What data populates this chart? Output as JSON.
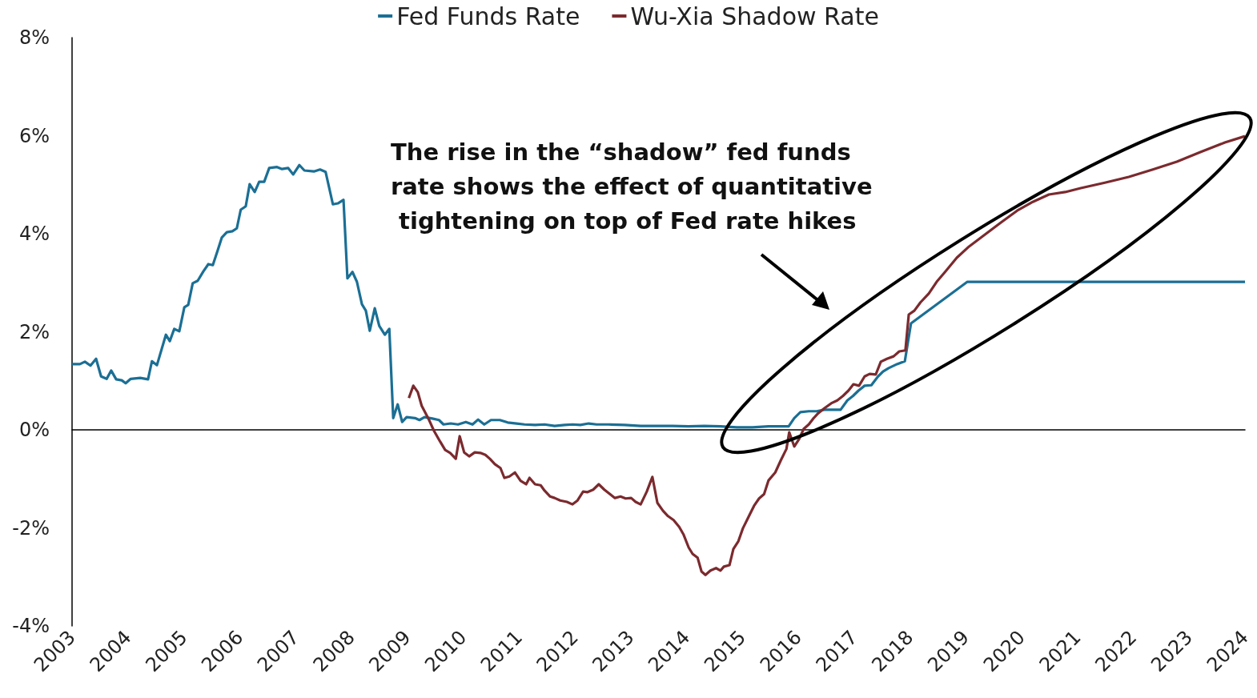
{
  "chart_data": {
    "type": "line",
    "legend": "top",
    "marker": "none",
    "xlim": [
      2003,
      2024
    ],
    "xticks": [
      2003,
      2004,
      2005,
      2006,
      2007,
      2008,
      2009,
      2010,
      2011,
      2012,
      2013,
      2014,
      2015,
      2016,
      2017,
      2018,
      2019,
      2020,
      2021,
      2022,
      2023,
      2024
    ],
    "ylim": [
      -4,
      8
    ],
    "yticks": [
      {
        "value": -4,
        "label": "-4%"
      },
      {
        "value": -2,
        "label": "-2%"
      },
      {
        "value": 0,
        "label": "0%"
      },
      {
        "value": 2,
        "label": "2%"
      },
      {
        "value": 4,
        "label": "4%"
      },
      {
        "value": 6,
        "label": "6%"
      },
      {
        "value": 8,
        "label": "8%"
      }
    ],
    "annotations": [
      "The rise in the “shadow” fed funds rate shows the effect of quantitative tightening on top of Fed rate hikes"
    ],
    "series": [
      {
        "name": "Fed Funds Rate",
        "color": "#1b6f94",
        "x": [
          2003.0,
          2003.14,
          2003.23,
          2003.33,
          2003.43,
          2003.52,
          2003.62,
          2003.7,
          2003.79,
          2003.89,
          2003.96,
          2004.05,
          2004.22,
          2004.36,
          2004.43,
          2004.52,
          2004.68,
          2004.75,
          2004.83,
          2004.92,
          2005.01,
          2005.08,
          2005.16,
          2005.25,
          2005.35,
          2005.44,
          2005.52,
          2005.61,
          2005.68,
          2005.77,
          2005.87,
          2005.95,
          2006.02,
          2006.11,
          2006.18,
          2006.27,
          2006.35,
          2006.44,
          2006.53,
          2006.67,
          2006.76,
          2006.87,
          2006.96,
          2007.07,
          2007.16,
          2007.33,
          2007.44,
          2007.54,
          2007.67,
          2007.76,
          2007.86,
          2007.93,
          2008.02,
          2008.1,
          2008.19,
          2008.26,
          2008.33,
          2008.42,
          2008.5,
          2008.6,
          2008.68,
          2008.75,
          2008.83,
          2008.91,
          2008.99,
          2009.14,
          2009.22,
          2009.31,
          2009.45,
          2009.57,
          2009.65,
          2009.78,
          2009.91,
          2010.05,
          2010.17,
          2010.27,
          2010.38,
          2010.5,
          2010.66,
          2010.8,
          2010.96,
          2011.1,
          2011.29,
          2011.46,
          2011.64,
          2011.82,
          2011.96,
          2012.1,
          2012.25,
          2012.39,
          2012.6,
          2012.89,
          2013.18,
          2013.46,
          2013.75,
          2014.04,
          2014.32,
          2014.61,
          2014.9,
          2015.18,
          2015.47,
          2015.69,
          2015.83,
          2015.93,
          2016.04,
          2016.19,
          2016.33,
          2016.47,
          2016.76,
          2016.88,
          2016.98,
          2017.08,
          2017.19,
          2017.31,
          2017.43,
          2017.52,
          2017.62,
          2017.77,
          2017.91,
          2018.02,
          2019.03,
          2024.0
        ],
        "values": [
          1.34,
          1.34,
          1.39,
          1.31,
          1.45,
          1.09,
          1.04,
          1.21,
          1.03,
          1.01,
          0.95,
          1.04,
          1.06,
          1.03,
          1.4,
          1.32,
          1.94,
          1.81,
          2.06,
          2.01,
          2.5,
          2.55,
          2.99,
          3.04,
          3.23,
          3.38,
          3.36,
          3.67,
          3.92,
          4.03,
          4.05,
          4.11,
          4.49,
          4.56,
          5.01,
          4.85,
          5.06,
          5.06,
          5.34,
          5.36,
          5.32,
          5.34,
          5.21,
          5.4,
          5.29,
          5.27,
          5.31,
          5.26,
          4.6,
          4.62,
          4.69,
          3.09,
          3.22,
          3.02,
          2.56,
          2.43,
          2.02,
          2.48,
          2.12,
          1.94,
          2.06,
          0.24,
          0.52,
          0.16,
          0.26,
          0.24,
          0.2,
          0.26,
          0.23,
          0.2,
          0.11,
          0.13,
          0.11,
          0.16,
          0.11,
          0.21,
          0.11,
          0.2,
          0.2,
          0.15,
          0.13,
          0.11,
          0.1,
          0.11,
          0.08,
          0.1,
          0.11,
          0.1,
          0.13,
          0.11,
          0.11,
          0.1,
          0.08,
          0.08,
          0.08,
          0.07,
          0.08,
          0.07,
          0.05,
          0.05,
          0.07,
          0.07,
          0.07,
          0.24,
          0.36,
          0.38,
          0.38,
          0.41,
          0.41,
          0.6,
          0.69,
          0.8,
          0.9,
          0.91,
          1.09,
          1.19,
          1.26,
          1.34,
          1.4,
          2.17,
          3.02,
          3.02
        ]
      },
      {
        "name": "Wu-Xia Shadow Rate",
        "color": "#7b2a2e",
        "x": [
          2009.03,
          2009.11,
          2009.19,
          2009.26,
          2009.38,
          2009.48,
          2009.59,
          2009.68,
          2009.77,
          2009.87,
          2009.94,
          2010.02,
          2010.11,
          2010.21,
          2010.31,
          2010.4,
          2010.48,
          2010.57,
          2010.67,
          2010.74,
          2010.83,
          2010.93,
          2011.03,
          2011.13,
          2011.19,
          2011.29,
          2011.39,
          2011.46,
          2011.56,
          2011.64,
          2011.74,
          2011.86,
          2011.96,
          2012.05,
          2012.15,
          2012.23,
          2012.33,
          2012.43,
          2012.53,
          2012.63,
          2012.72,
          2012.82,
          2012.91,
          2013.01,
          2013.09,
          2013.18,
          2013.29,
          2013.39,
          2013.48,
          2013.58,
          2013.67,
          2013.77,
          2013.87,
          2013.95,
          2014.04,
          2014.11,
          2014.2,
          2014.27,
          2014.34,
          2014.43,
          2014.53,
          2014.61,
          2014.67,
          2014.77,
          2014.84,
          2014.93,
          2015.01,
          2015.11,
          2015.21,
          2015.3,
          2015.39,
          2015.47,
          2015.59,
          2015.69,
          2015.79,
          2015.84,
          2015.93,
          2016.02,
          2016.1,
          2016.19,
          2016.27,
          2016.36,
          2016.47,
          2016.59,
          2016.7,
          2016.8,
          2016.9,
          2016.99,
          2017.09,
          2017.19,
          2017.28,
          2017.39,
          2017.48,
          2017.59,
          2017.71,
          2017.81,
          2017.92,
          2017.98,
          2018.08,
          2018.19,
          2018.34,
          2018.48,
          2018.63,
          2018.84,
          2019.06,
          2019.34,
          2019.63,
          2019.92,
          2020.2,
          2020.49,
          2020.78,
          2021.06,
          2021.49,
          2021.92,
          2022.35,
          2022.78,
          2023.21,
          2023.64,
          2024.0
        ],
        "values": [
          0.65,
          0.9,
          0.77,
          0.49,
          0.23,
          -0.02,
          -0.24,
          -0.41,
          -0.47,
          -0.59,
          -0.13,
          -0.46,
          -0.54,
          -0.46,
          -0.47,
          -0.51,
          -0.59,
          -0.7,
          -0.78,
          -0.98,
          -0.95,
          -0.87,
          -1.04,
          -1.11,
          -0.98,
          -1.11,
          -1.13,
          -1.24,
          -1.36,
          -1.39,
          -1.44,
          -1.47,
          -1.52,
          -1.44,
          -1.26,
          -1.27,
          -1.22,
          -1.11,
          -1.22,
          -1.31,
          -1.39,
          -1.36,
          -1.4,
          -1.39,
          -1.47,
          -1.52,
          -1.26,
          -0.96,
          -1.49,
          -1.65,
          -1.76,
          -1.84,
          -1.98,
          -2.14,
          -2.4,
          -2.53,
          -2.61,
          -2.89,
          -2.96,
          -2.87,
          -2.82,
          -2.87,
          -2.79,
          -2.76,
          -2.43,
          -2.27,
          -2.01,
          -1.78,
          -1.55,
          -1.4,
          -1.31,
          -1.03,
          -0.87,
          -0.62,
          -0.39,
          -0.05,
          -0.34,
          -0.18,
          0.02,
          0.11,
          0.23,
          0.34,
          0.44,
          0.54,
          0.6,
          0.69,
          0.8,
          0.93,
          0.9,
          1.09,
          1.14,
          1.13,
          1.39,
          1.45,
          1.5,
          1.6,
          1.62,
          2.35,
          2.43,
          2.6,
          2.78,
          3.02,
          3.22,
          3.51,
          3.74,
          3.98,
          4.23,
          4.47,
          4.65,
          4.8,
          4.85,
          4.93,
          5.04,
          5.16,
          5.31,
          5.47,
          5.67,
          5.86,
          5.99
        ]
      }
    ]
  }
}
